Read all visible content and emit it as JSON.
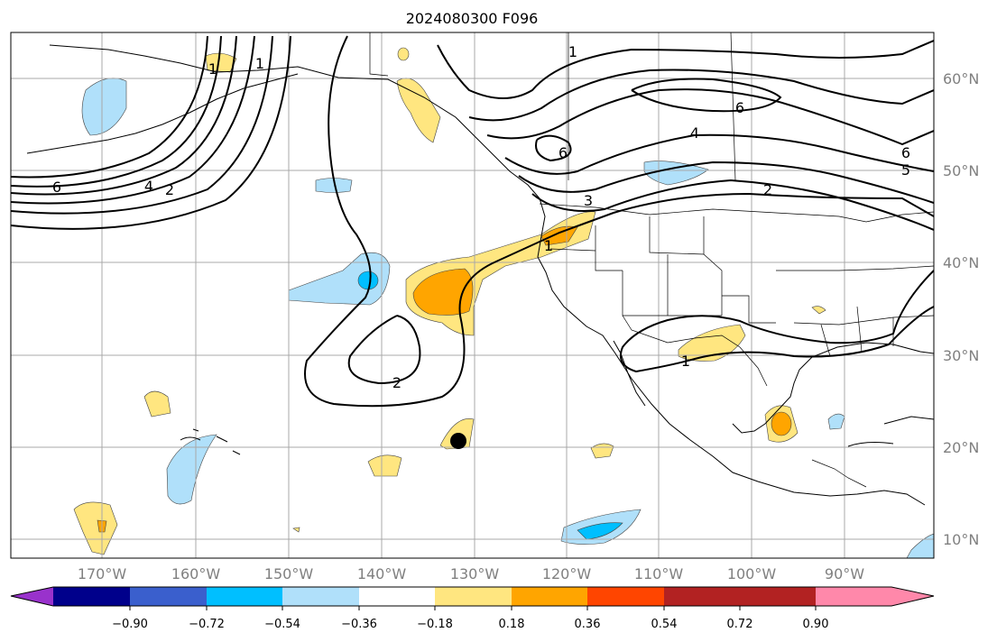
{
  "title": "2024080300 F096",
  "lat_labels": [
    "60°N",
    "50°N",
    "40°N",
    "30°N",
    "20°N",
    "10°N"
  ],
  "lon_labels": [
    "170°W",
    "160°W",
    "150°W",
    "140°W",
    "130°W",
    "120°W",
    "110°W",
    "100°W",
    "90°W"
  ],
  "colorbar": {
    "colors": [
      "#9932cc",
      "#00008b",
      "#3a5fcd",
      "#00bfff",
      "#b0e0fa",
      "#ffffff",
      "#ffe680",
      "#ffa500",
      "#ff4500",
      "#b22222",
      "#ff88aa"
    ],
    "tick_labels": [
      "−0.90",
      "−0.72",
      "−0.54",
      "−0.36",
      "−0.18",
      "0.18",
      "0.36",
      "0.54",
      "0.72",
      "0.90"
    ]
  },
  "contour_labels": {
    "c1": "1",
    "c2": "1",
    "c3": "6",
    "c4": "4",
    "c5": "2",
    "c6": "6",
    "c7": "1",
    "c8": "6",
    "c9": "4",
    "c10": "3",
    "c11": "1",
    "c12": "2",
    "c13": "6",
    "c14": "5",
    "c15": "2",
    "c16": "1"
  }
}
